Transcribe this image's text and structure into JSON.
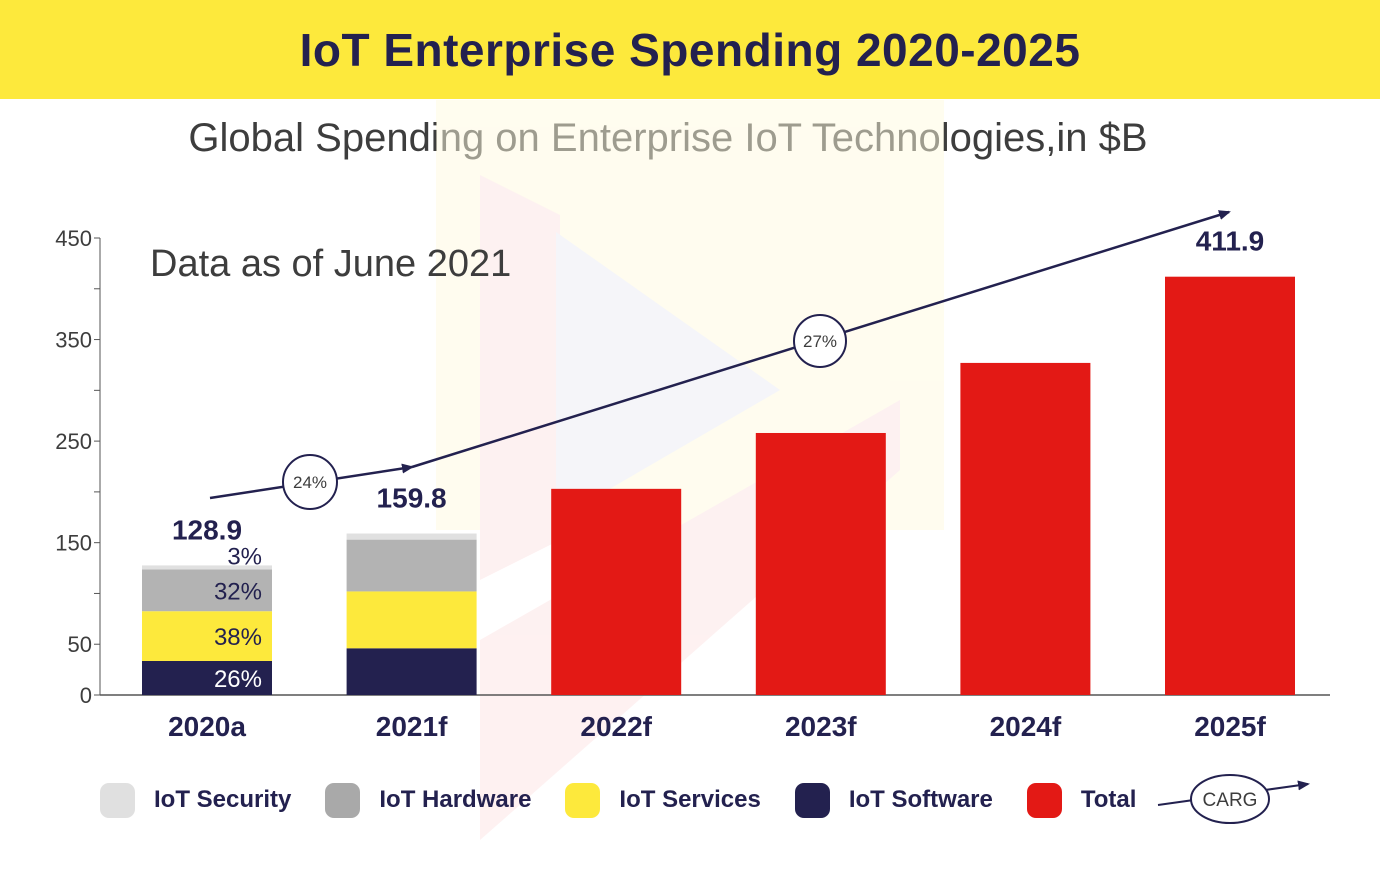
{
  "header": {
    "title": "IoT Enterprise Spending 2020-2025"
  },
  "chart_data": {
    "type": "bar",
    "title": "Global Spending on Enterprise IoT Technologies,in $B",
    "annotation": "Data as of June 2021",
    "categories": [
      "2020a",
      "2021f",
      "2022f",
      "2023f",
      "2024f",
      "2025f"
    ],
    "ylim": [
      0,
      450
    ],
    "yticks": [
      0,
      50,
      150,
      250,
      350,
      450
    ],
    "stacked_series": [
      {
        "name": "IoT Software",
        "color": "#23214f",
        "values": [
          33.5,
          46
        ],
        "labels": [
          "26%",
          ""
        ]
      },
      {
        "name": "IoT Services",
        "color": "#fde93c",
        "values": [
          49,
          56
        ],
        "labels": [
          "38%",
          ""
        ]
      },
      {
        "name": "IoT Hardware",
        "color": "#b3b3b3",
        "values": [
          41.2,
          51
        ],
        "labels": [
          "32%",
          ""
        ]
      },
      {
        "name": "IoT Security",
        "color": "#e0e0e0",
        "values": [
          3.9,
          6
        ],
        "labels": [
          "3%",
          ""
        ]
      }
    ],
    "total_series": {
      "name": "Total",
      "color": "#e31915",
      "values": [
        null,
        null,
        203,
        258,
        327,
        411.9
      ]
    },
    "total_labels": [
      "128.9",
      "159.8",
      "",
      "",
      "",
      "411.9"
    ],
    "cagr": [
      {
        "label": "24%",
        "from": "2020a",
        "to": "2021f"
      },
      {
        "label": "27%",
        "from": "2021f",
        "to": "2025f"
      }
    ],
    "legend_note": "CARG"
  },
  "legend": [
    {
      "label": "IoT Security",
      "color": "#e0e0e0"
    },
    {
      "label": "IoT Hardware",
      "color": "#a9a9a9"
    },
    {
      "label": "IoT Services",
      "color": "#fde93c"
    },
    {
      "label": "IoT Software",
      "color": "#23214f"
    },
    {
      "label": "Total",
      "color": "#e31915"
    }
  ]
}
